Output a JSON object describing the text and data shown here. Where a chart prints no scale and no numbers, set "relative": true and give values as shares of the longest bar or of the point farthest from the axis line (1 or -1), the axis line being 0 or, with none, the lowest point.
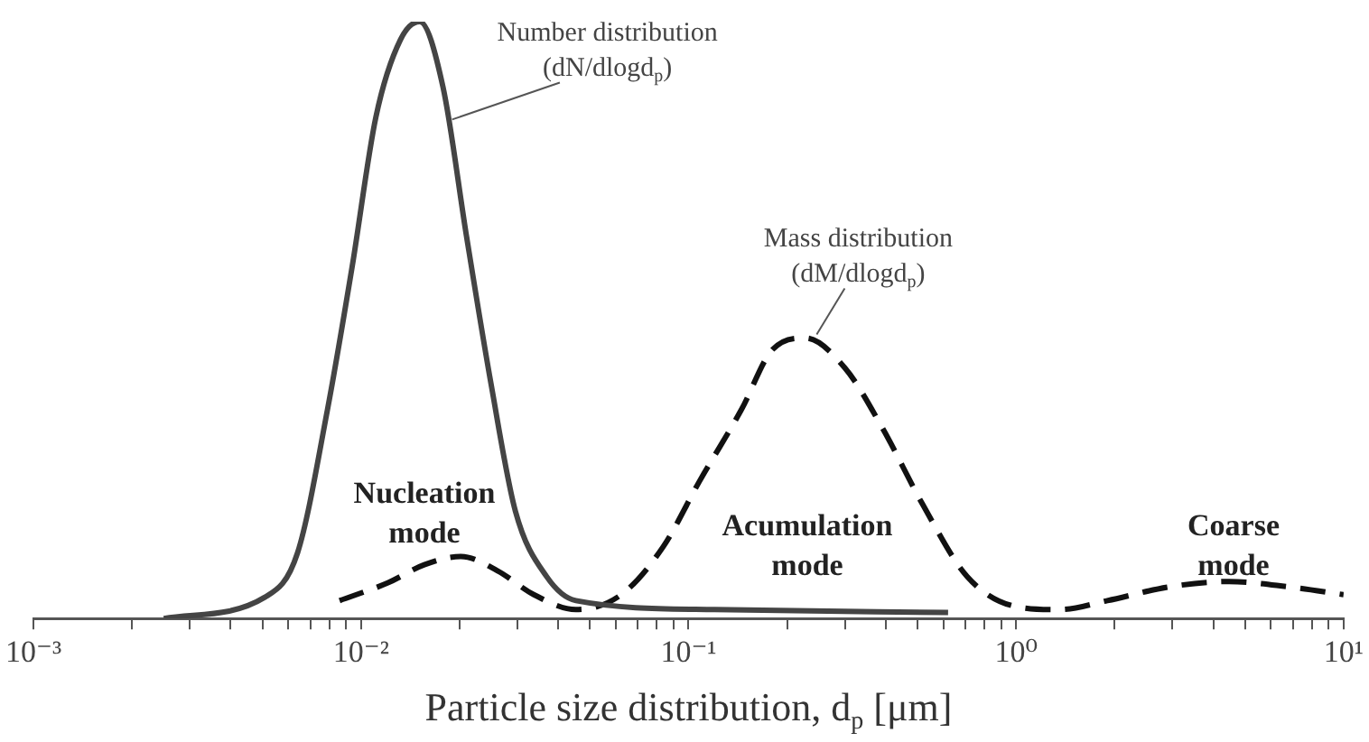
{
  "chart_data": {
    "type": "line",
    "relative": true,
    "xlabel": "Particle size distribution, d$_{p}$ [μm]",
    "log": "x",
    "xlim": [
      0.001,
      10
    ],
    "xticks": [
      {
        "value": 0.001,
        "label": "10⁻³"
      },
      {
        "value": 0.002,
        "label": null
      },
      {
        "value": 0.003,
        "label": null
      },
      {
        "value": 0.004,
        "label": null
      },
      {
        "value": 0.005,
        "label": null
      },
      {
        "value": 0.006,
        "label": null
      },
      {
        "value": 0.007,
        "label": null
      },
      {
        "value": 0.008,
        "label": null
      },
      {
        "value": 0.009,
        "label": null
      },
      {
        "value": 0.01,
        "label": "10⁻²"
      },
      {
        "value": 0.02,
        "label": null
      },
      {
        "value": 0.03,
        "label": null
      },
      {
        "value": 0.04,
        "label": null
      },
      {
        "value": 0.05,
        "label": null
      },
      {
        "value": 0.06,
        "label": null
      },
      {
        "value": 0.07,
        "label": null
      },
      {
        "value": 0.08,
        "label": null
      },
      {
        "value": 0.09,
        "label": null
      },
      {
        "value": 0.1,
        "label": "10⁻¹"
      },
      {
        "value": 0.2,
        "label": null
      },
      {
        "value": 0.3,
        "label": null
      },
      {
        "value": 0.4,
        "label": null
      },
      {
        "value": 0.5,
        "label": null
      },
      {
        "value": 0.6,
        "label": null
      },
      {
        "value": 0.7,
        "label": null
      },
      {
        "value": 0.8,
        "label": null
      },
      {
        "value": 0.9,
        "label": null
      },
      {
        "value": 1,
        "label": "10⁰"
      },
      {
        "value": 2,
        "label": null
      },
      {
        "value": 3,
        "label": null
      },
      {
        "value": 4,
        "label": null
      },
      {
        "value": 5,
        "label": null
      },
      {
        "value": 6,
        "label": null
      },
      {
        "value": 7,
        "label": null
      },
      {
        "value": 8,
        "label": null
      },
      {
        "value": 9,
        "label": null
      },
      {
        "value": 10,
        "label": "10¹"
      }
    ],
    "grid": false,
    "legend": false,
    "marker": "none",
    "series": [
      {
        "color": "#444444",
        "line_style": "solid",
        "x": [
          0.0025,
          0.0051,
          0.0064,
          0.0079,
          0.0094,
          0.0111,
          0.0132,
          0.0151,
          0.0178,
          0.021,
          0.025,
          0.0296,
          0.0369,
          0.0453,
          0.12,
          0.62
        ],
        "values": [
          0,
          0.036,
          0.11,
          0.35,
          0.59,
          0.84,
          0.97,
          1,
          0.89,
          0.64,
          0.39,
          0.18,
          0.07,
          0.03,
          0.015,
          0.01
        ]
      },
      {
        "color": "#111111",
        "line_style": "dashed",
        "x": [
          0.0086,
          0.0121,
          0.0156,
          0.0202,
          0.0261,
          0.0337,
          0.0453,
          0.0623,
          0.0836,
          0.108,
          0.145,
          0.18,
          0.227,
          0.3,
          0.39,
          0.52,
          0.71,
          1,
          1.36,
          1.9,
          2.93,
          4.47,
          6.8,
          10
        ],
        "values": [
          0.03,
          0.06,
          0.09,
          0.104,
          0.08,
          0.04,
          0.015,
          0.04,
          0.12,
          0.23,
          0.35,
          0.45,
          0.47,
          0.42,
          0.32,
          0.19,
          0.07,
          0.02,
          0.015,
          0.03,
          0.053,
          0.062,
          0.053,
          0.04
        ]
      }
    ],
    "annotations": [
      {
        "text": "Number distribution (dN/dlogd$_{p}$)",
        "x": 0.0185,
        "y": 0.83
      },
      {
        "text": "Mass distribution (dM/dlogd$_{p}$)",
        "x": 0.24,
        "y": 0.47
      },
      "Nucleation mode",
      "Acumulation mode",
      "Coarse mode"
    ]
  }
}
